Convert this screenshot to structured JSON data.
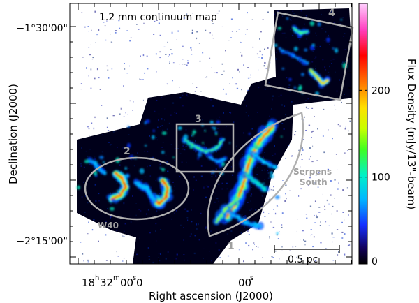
{
  "chart_data": {
    "type": "heatmap",
    "title": "1.2 mm continuum map",
    "xlabel": "Right ascension (J2000)",
    "ylabel": "Declination (J2000)",
    "x_ticks": [
      {
        "h": "18",
        "m": "32",
        "s": "00",
        "frac": "0",
        "ra_sec": 1920.0
      },
      {
        "h": "",
        "m": "",
        "s": "00",
        "frac": "",
        "ra_sec": 1860.0
      }
    ],
    "y_ticks": [
      {
        "label": "−1°30'00\"",
        "dec_deg": -1.5
      },
      {
        "label": "−2°15'00\"",
        "dec_deg": -2.25
      }
    ],
    "colorbar": {
      "label": "Flux Density (mJy/13\"-beam)",
      "ticks": [
        0,
        100,
        200
      ],
      "range": [
        0,
        300
      ]
    },
    "regions": [
      {
        "name": "1",
        "shape": "lens"
      },
      {
        "name": "2",
        "shape": "ellipse"
      },
      {
        "name": "3",
        "shape": "box"
      },
      {
        "name": "4",
        "shape": "box"
      }
    ],
    "annotations": [
      {
        "text": "W40"
      },
      {
        "text": "Serpens"
      },
      {
        "text": "South"
      }
    ],
    "scale_bar": {
      "label": "0.5 pc"
    }
  }
}
